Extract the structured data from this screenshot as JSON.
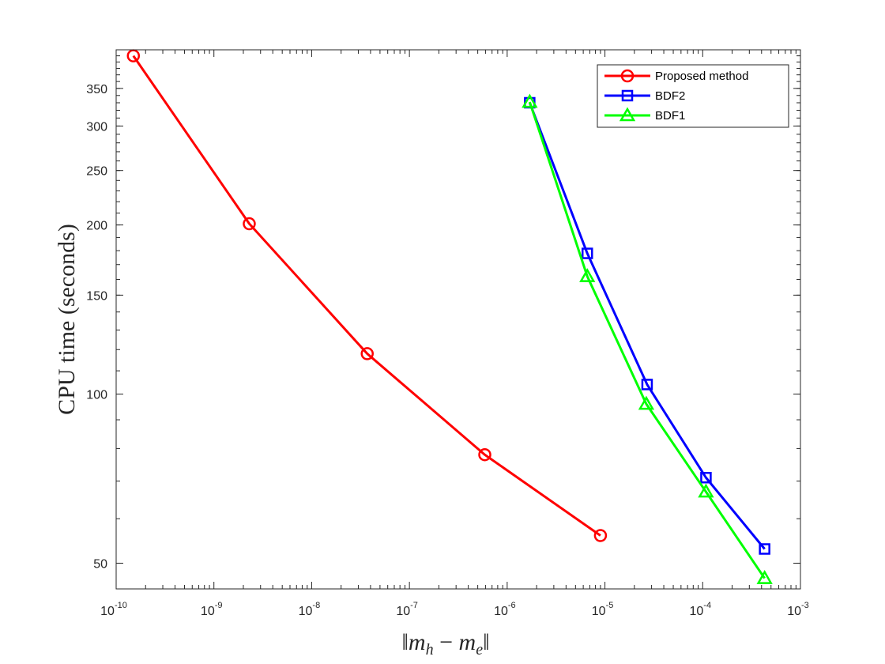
{
  "chart_data": {
    "type": "line",
    "title": "",
    "xlabel_parts": [
      "‖",
      "m",
      "h",
      " − ",
      "m",
      "e",
      "‖"
    ],
    "ylabel": "CPU time (seconds)",
    "xscale": "log",
    "yscale": "log",
    "xlim": [
      1e-10,
      0.001
    ],
    "ylim": [
      45,
      410
    ],
    "x_ticks": [
      {
        "value": 1e-10,
        "base": "10",
        "exp": "-10"
      },
      {
        "value": 1e-09,
        "base": "10",
        "exp": "-9"
      },
      {
        "value": 1e-08,
        "base": "10",
        "exp": "-8"
      },
      {
        "value": 1e-07,
        "base": "10",
        "exp": "-7"
      },
      {
        "value": 1e-06,
        "base": "10",
        "exp": "-6"
      },
      {
        "value": 1e-05,
        "base": "10",
        "exp": "-5"
      },
      {
        "value": 0.0001,
        "base": "10",
        "exp": "-4"
      },
      {
        "value": 0.001,
        "base": "10",
        "exp": "-3"
      }
    ],
    "y_ticks": [
      {
        "value": 50,
        "label": "50"
      },
      {
        "value": 100,
        "label": "100"
      },
      {
        "value": 150,
        "label": "150"
      },
      {
        "value": 200,
        "label": "200"
      },
      {
        "value": 250,
        "label": "250"
      },
      {
        "value": 300,
        "label": "300"
      },
      {
        "value": 350,
        "label": "350"
      }
    ],
    "grid": false,
    "legend_position": "top-right",
    "series": [
      {
        "name": "Proposed method",
        "color": "#ff0000",
        "marker": "circle",
        "points": [
          {
            "x": 1.5e-10,
            "y": 400
          },
          {
            "x": 2.3e-09,
            "y": 201
          },
          {
            "x": 3.7e-08,
            "y": 118
          },
          {
            "x": 5.9e-07,
            "y": 78
          },
          {
            "x": 9e-06,
            "y": 56
          }
        ]
      },
      {
        "name": "BDF2",
        "color": "#0000ff",
        "marker": "square",
        "points": [
          {
            "x": 1.7e-06,
            "y": 330
          },
          {
            "x": 6.6e-06,
            "y": 178
          },
          {
            "x": 2.7e-05,
            "y": 104
          },
          {
            "x": 0.000108,
            "y": 71
          },
          {
            "x": 0.00043,
            "y": 53
          }
        ]
      },
      {
        "name": "BDF1",
        "color": "#00ff00",
        "marker": "triangle",
        "points": [
          {
            "x": 1.7e-06,
            "y": 331
          },
          {
            "x": 6.6e-06,
            "y": 162
          },
          {
            "x": 2.65e-05,
            "y": 96
          },
          {
            "x": 0.000108,
            "y": 67
          },
          {
            "x": 0.00043,
            "y": 47
          }
        ]
      }
    ]
  }
}
